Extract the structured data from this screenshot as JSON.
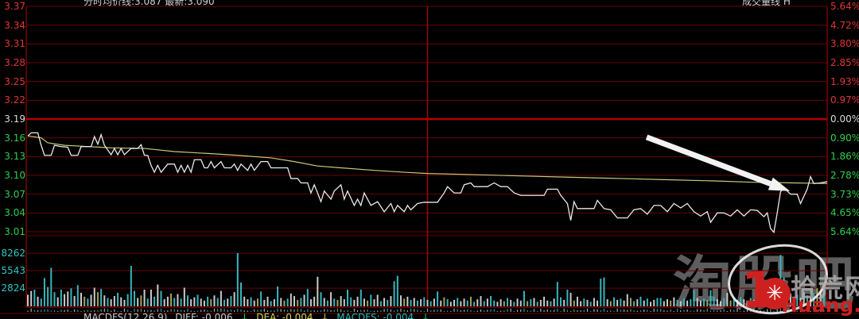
{
  "header": {
    "left": "分时均价线:3.087  最新:3.090",
    "right": "成交量线 H"
  },
  "price_axis": {
    "values": [
      "3.37",
      "3.34",
      "3.31",
      "3.28",
      "3.25",
      "3.22",
      "3.19",
      "3.16",
      "3.13",
      "3.10",
      "3.07",
      "3.04",
      "3.01"
    ]
  },
  "pct_axis": {
    "values": [
      "5.64%",
      "4.72%",
      "3.80%",
      "2.85%",
      "1.93%",
      "0.97%",
      "0.00%",
      "0.90%",
      "1.86%",
      "2.78%",
      "3.73%",
      "4.65%",
      "5.64%"
    ]
  },
  "volume_axis": {
    "values": [
      "8262",
      "5543",
      "2824"
    ]
  },
  "footer": {
    "indicator": "MACDFS(12,26,9)",
    "diff": "DIFF: -0.006",
    "arrow1": "↓",
    "dea": "DEA: -0.004",
    "arrow2": "↓",
    "macd": "MACDFS: -0.004",
    "arrow3": "↓"
  },
  "watermark": {
    "taoguba": "淘股吧",
    "one": "1",
    "gear": "✳",
    "shihuang": "拾荒网",
    "huang": "Huang.",
    "cn": "CN"
  },
  "colors": {
    "background": "#000000",
    "grid": "#6b0000",
    "grid_bright": "#b20000",
    "mid_line": "#a40000",
    "price_line": "#e9e9e9",
    "avg_line": "#c9c978",
    "up": "#e23535",
    "down": "#2fcf4a",
    "flat": "#dadada",
    "volume_label": "#2fc5c5",
    "vol_c": "#35b6bc",
    "vol_w": "#c9c9c9",
    "vol_y": "#a2a258",
    "footer_text": "#cccccc",
    "footer_dea": "#d8d855",
    "footer_macd": "#35b6bc",
    "footer_arrow": "#2fcf4a",
    "watermark_gray": "#a0a0a0",
    "watermark_red": "#cf2020",
    "watermark_orange": "#dba018",
    "arrow": "#f2f2f2"
  },
  "chart_data": {
    "type": "line",
    "title": "intraday-time-sharing-chart",
    "panes": [
      "price",
      "volume"
    ],
    "prev_close": 3.19,
    "price_range": [
      3.01,
      3.37
    ],
    "pct_range": [
      -5.64,
      5.64
    ],
    "volume_range": [
      0,
      11000
    ],
    "minutes": 240,
    "grid": true,
    "price_series": [
      [
        0,
        3.163
      ],
      [
        1,
        3.168
      ],
      [
        3,
        3.168
      ],
      [
        4,
        3.148
      ],
      [
        5,
        3.132
      ],
      [
        7,
        3.132
      ],
      [
        8,
        3.148
      ],
      [
        10,
        3.146
      ],
      [
        12,
        3.145
      ],
      [
        13,
        3.132
      ],
      [
        15,
        3.132
      ],
      [
        16,
        3.146
      ],
      [
        19,
        3.146
      ],
      [
        20,
        3.162
      ],
      [
        21,
        3.15
      ],
      [
        22,
        3.165
      ],
      [
        23,
        3.148
      ],
      [
        25,
        3.133
      ],
      [
        26,
        3.143
      ],
      [
        27,
        3.133
      ],
      [
        28,
        3.143
      ],
      [
        29,
        3.133
      ],
      [
        31,
        3.143
      ],
      [
        33,
        3.143
      ],
      [
        34,
        3.149
      ],
      [
        35,
        3.132
      ],
      [
        36,
        3.132
      ],
      [
        37,
        3.116
      ],
      [
        38,
        3.105
      ],
      [
        39,
        3.116
      ],
      [
        40,
        3.105
      ],
      [
        42,
        3.118
      ],
      [
        44,
        3.118
      ],
      [
        45,
        3.105
      ],
      [
        46,
        3.116
      ],
      [
        47,
        3.105
      ],
      [
        48,
        3.116
      ],
      [
        49,
        3.105
      ],
      [
        50,
        3.125
      ],
      [
        52,
        3.125
      ],
      [
        53,
        3.112
      ],
      [
        54,
        3.112
      ],
      [
        55,
        3.122
      ],
      [
        56,
        3.112
      ],
      [
        58,
        3.122
      ],
      [
        59,
        3.112
      ],
      [
        61,
        3.112
      ],
      [
        62,
        3.118
      ],
      [
        63,
        3.108
      ],
      [
        64,
        3.118
      ],
      [
        66,
        3.108
      ],
      [
        67,
        3.118
      ],
      [
        68,
        3.108
      ],
      [
        70,
        3.122
      ],
      [
        72,
        3.122
      ],
      [
        73,
        3.112
      ],
      [
        78,
        3.112
      ],
      [
        79,
        3.095
      ],
      [
        81,
        3.095
      ],
      [
        82,
        3.088
      ],
      [
        84,
        3.088
      ],
      [
        85,
        3.072
      ],
      [
        86,
        3.085
      ],
      [
        87,
        3.072
      ],
      [
        88,
        3.058
      ],
      [
        89,
        3.075
      ],
      [
        91,
        3.062
      ],
      [
        92,
        3.075
      ],
      [
        94,
        3.085
      ],
      [
        95,
        3.062
      ],
      [
        96,
        3.075
      ],
      [
        98,
        3.052
      ],
      [
        99,
        3.062
      ],
      [
        100,
        3.052
      ],
      [
        101,
        3.072
      ],
      [
        103,
        3.052
      ],
      [
        105,
        3.058
      ],
      [
        107,
        3.042
      ],
      [
        109,
        3.055
      ],
      [
        110,
        3.042
      ],
      [
        111,
        3.052
      ],
      [
        113,
        3.042
      ],
      [
        114,
        3.052
      ],
      [
        115,
        3.045
      ],
      [
        117,
        3.055
      ],
      [
        119,
        3.057
      ],
      [
        120,
        3.057
      ],
      [
        123,
        3.057
      ],
      [
        125,
        3.072
      ],
      [
        126,
        3.082
      ],
      [
        128,
        3.072
      ],
      [
        130,
        3.072
      ],
      [
        131,
        3.085
      ],
      [
        133,
        3.088
      ],
      [
        134,
        3.082
      ],
      [
        138,
        3.082
      ],
      [
        140,
        3.088
      ],
      [
        142,
        3.082
      ],
      [
        144,
        3.082
      ],
      [
        146,
        3.072
      ],
      [
        148,
        3.068
      ],
      [
        155,
        3.068
      ],
      [
        156,
        3.078
      ],
      [
        159,
        3.078
      ],
      [
        160,
        3.068
      ],
      [
        162,
        3.055
      ],
      [
        163,
        3.028
      ],
      [
        164,
        3.058
      ],
      [
        165,
        3.047
      ],
      [
        170,
        3.047
      ],
      [
        171,
        3.06
      ],
      [
        173,
        3.047
      ],
      [
        175,
        3.045
      ],
      [
        177,
        3.032
      ],
      [
        180,
        3.032
      ],
      [
        182,
        3.045
      ],
      [
        184,
        3.047
      ],
      [
        186,
        3.038
      ],
      [
        188,
        3.052
      ],
      [
        190,
        3.052
      ],
      [
        192,
        3.042
      ],
      [
        194,
        3.055
      ],
      [
        196,
        3.048
      ],
      [
        198,
        3.055
      ],
      [
        200,
        3.042
      ],
      [
        202,
        3.035
      ],
      [
        204,
        3.042
      ],
      [
        205,
        3.025
      ],
      [
        207,
        3.04
      ],
      [
        209,
        3.04
      ],
      [
        211,
        3.035
      ],
      [
        213,
        3.045
      ],
      [
        215,
        3.035
      ],
      [
        217,
        3.045
      ],
      [
        219,
        3.044
      ],
      [
        221,
        3.034
      ],
      [
        222,
        3.04
      ],
      [
        223,
        3.015
      ],
      [
        224,
        3.009
      ],
      [
        225,
        3.04
      ],
      [
        226,
        3.074
      ],
      [
        227,
        3.08
      ],
      [
        229,
        3.07
      ],
      [
        231,
        3.07
      ],
      [
        232,
        3.055
      ],
      [
        234,
        3.078
      ],
      [
        235,
        3.098
      ],
      [
        236,
        3.087
      ],
      [
        238,
        3.088
      ],
      [
        240,
        3.09
      ]
    ],
    "avg_series": [
      [
        0,
        3.163
      ],
      [
        4,
        3.16
      ],
      [
        6,
        3.152
      ],
      [
        11,
        3.148
      ],
      [
        18,
        3.146
      ],
      [
        25,
        3.144
      ],
      [
        35,
        3.143
      ],
      [
        44,
        3.138
      ],
      [
        54,
        3.135
      ],
      [
        63,
        3.132
      ],
      [
        73,
        3.128
      ],
      [
        80,
        3.122
      ],
      [
        87,
        3.115
      ],
      [
        94,
        3.112
      ],
      [
        104,
        3.108
      ],
      [
        113,
        3.105
      ],
      [
        120,
        3.103
      ],
      [
        135,
        3.101
      ],
      [
        149,
        3.099
      ],
      [
        163,
        3.097
      ],
      [
        178,
        3.095
      ],
      [
        192,
        3.093
      ],
      [
        207,
        3.091
      ],
      [
        218,
        3.089
      ],
      [
        230,
        3.088
      ],
      [
        240,
        3.087
      ]
    ],
    "volume_values": [
      1800,
      2400,
      2600,
      1500,
      1200,
      4400,
      3000,
      6000,
      2200,
      1400,
      2600,
      1900,
      2300,
      2800,
      1600,
      3300,
      2100,
      1500,
      1200,
      1800,
      2900,
      2200,
      2700,
      1700,
      1300,
      1100,
      1600,
      2100,
      1400,
      1000,
      1900,
      6300,
      2400,
      1300,
      1700,
      2600,
      1200,
      2600,
      1500,
      3400,
      2400,
      1100,
      1500,
      2000,
      1300,
      1900,
      1200,
      2900,
      1700,
      1100,
      1400,
      1800,
      1200,
      900,
      1500,
      1100,
      1700,
      1300,
      2400,
      1000,
      1200,
      1600,
      2200,
      8300,
      3700,
      1500,
      1100,
      1400,
      900,
      1200,
      2300,
      1000,
      1500,
      800,
      1100,
      3100,
      1300,
      900,
      1200,
      2000,
      1600,
      1000,
      1300,
      1800,
      2700,
      1100,
      1500,
      4600,
      2200,
      1300,
      900,
      2200,
      1200,
      1000,
      1600,
      1100,
      2600,
      1400,
      1000,
      1500,
      2600,
      1200,
      900,
      1800,
      1100,
      1800,
      800,
      1300,
      1000,
      1600,
      3900,
      4750,
      1700,
      1200,
      1500,
      1000,
      1300,
      900,
      1100,
      1400,
      1000,
      800,
      1200,
      2300,
      900,
      1400,
      1100,
      700,
      1000,
      1300,
      800,
      1200,
      900,
      1500,
      700,
      1100,
      1600,
      800,
      1200,
      1600,
      900,
      700,
      1100,
      800,
      1300,
      1000,
      700,
      1200,
      900,
      2400,
      800,
      1100,
      1300,
      700,
      1000,
      1500,
      900,
      800,
      1200,
      3800,
      1400,
      1000,
      2600,
      2100,
      900,
      1500,
      800,
      1200,
      1000,
      700,
      1300,
      900,
      4300,
      4500,
      1100,
      800,
      1400,
      1000,
      1200,
      900,
      1900,
      1300,
      800,
      1100,
      1500,
      900,
      1200,
      700,
      1000,
      1300,
      1300,
      800,
      1100,
      900,
      1400,
      1000,
      800,
      1200,
      900,
      1100,
      2500,
      1300,
      900,
      1200,
      1000,
      2500,
      1500,
      1100,
      800,
      1300,
      2100,
      900,
      1200,
      1000,
      1400,
      1100,
      900,
      1300,
      1000,
      1200,
      1500,
      1100,
      1300,
      2000,
      3500,
      2400,
      8000,
      4500,
      2600,
      2000,
      1500,
      1800,
      1300,
      2200,
      1700,
      1400,
      2000,
      2800,
      2400,
      3000
    ],
    "volume_colors": "wwcwcccccwcwwcwcwycwwycwcwwcwwcccwywcwcwcwwycwcwcwwcwwcywcwcwcwccwwcwycwwcwcwycwwycwcwwwcwcwcywwccwwcwycwwcwcwccwywcwcwcwcwcwycwwcwwcycwwcwccwwycwcwwcycwcwwwcwccwcwywwcwcwwccwycwcwwycwcwcwwccwwywcwcwccwwcyccwwcwycwcwwcwywcwccwcccwycwwcwcywc",
    "annotation_arrow": {
      "from_tp": [
        185.8,
        3.161
      ],
      "to_tp": [
        228.8,
        3.075
      ]
    }
  }
}
